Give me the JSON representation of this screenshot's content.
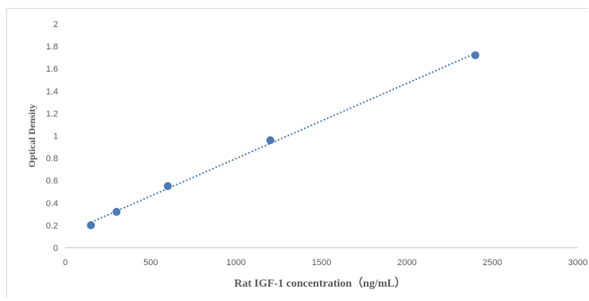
{
  "chart_data": {
    "type": "scatter",
    "title": "",
    "xlabel": "Rat IGF-1 concentration（ng/mL）",
    "ylabel": "Optical Density",
    "xlim": [
      0,
      3000
    ],
    "ylim": [
      0,
      2
    ],
    "xticks": [
      "0",
      "500",
      "1000",
      "1500",
      "2000",
      "2500",
      "3000"
    ],
    "yticks": [
      "0",
      "0.2",
      "0.4",
      "0.6",
      "0.8",
      "1",
      "1.2",
      "1.4",
      "1.6",
      "1.8",
      "2"
    ],
    "grid": false,
    "legend": "none",
    "series": [
      {
        "x": [
          150,
          300,
          600,
          1200,
          2400
        ],
        "y": [
          0.2,
          0.32,
          0.55,
          0.96,
          1.72
        ],
        "marker_color": "#4a7ab8",
        "trendline": {
          "type": "linear",
          "style": "dotted",
          "color": "#4a7ab8"
        }
      }
    ],
    "colors": {
      "axis": "#bfbfbf",
      "text": "#595959",
      "frame": "#d9d9d9"
    }
  }
}
